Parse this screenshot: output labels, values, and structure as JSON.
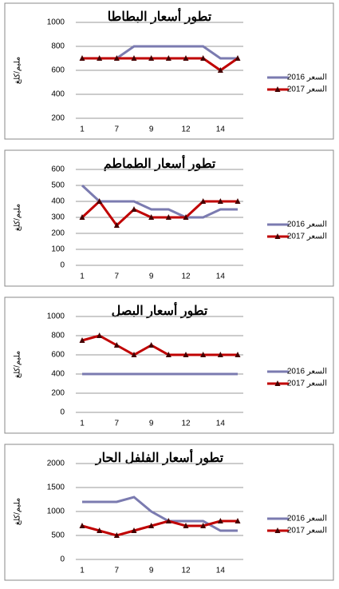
{
  "chart_data": [
    {
      "type": "line",
      "title": "تطور أسعار البطاطا",
      "y_label": "مليم/كلغ",
      "categories": [
        "1",
        null,
        "7",
        null,
        "9",
        null,
        "12",
        null,
        "14",
        null
      ],
      "series": [
        {
          "name": "السعر 2016",
          "color": "#7b7bb0",
          "values": [
            700,
            700,
            700,
            800,
            800,
            800,
            800,
            800,
            700,
            700
          ]
        },
        {
          "name": "السعر 2017",
          "color": "#c00000",
          "values": [
            700,
            700,
            700,
            700,
            700,
            700,
            700,
            700,
            600,
            700
          ]
        }
      ],
      "ylim": [
        200,
        1000
      ],
      "yticks": [
        200,
        400,
        600,
        800,
        1000
      ],
      "grid": true
    },
    {
      "type": "line",
      "title": "تطور أسعار الطماطم",
      "y_label": "مليم/كلغ",
      "categories": [
        "1",
        null,
        "7",
        null,
        "9",
        null,
        "12",
        null,
        "14",
        null
      ],
      "series": [
        {
          "name": "السعر 2016",
          "color": "#7b7bb0",
          "values": [
            500,
            400,
            400,
            400,
            350,
            350,
            300,
            300,
            350,
            350
          ]
        },
        {
          "name": "السعر 2017",
          "color": "#c00000",
          "values": [
            300,
            400,
            250,
            350,
            300,
            300,
            300,
            400,
            400,
            400
          ]
        }
      ],
      "ylim": [
        0,
        600
      ],
      "yticks": [
        0,
        100,
        200,
        300,
        400,
        500,
        600
      ],
      "grid": true
    },
    {
      "type": "line",
      "title": "تطور أسعار البصل",
      "y_label": "مليم/كلغ",
      "categories": [
        "1",
        null,
        "7",
        null,
        "9",
        null,
        "12",
        null,
        "14",
        null
      ],
      "series": [
        {
          "name": "السعر 2016",
          "color": "#7b7bb0",
          "values": [
            400,
            400,
            400,
            400,
            400,
            400,
            400,
            400,
            400,
            400
          ]
        },
        {
          "name": "السعر 2017",
          "color": "#c00000",
          "values": [
            750,
            800,
            700,
            600,
            700,
            600,
            600,
            600,
            600,
            600
          ]
        }
      ],
      "ylim": [
        0,
        1000
      ],
      "yticks": [
        0,
        200,
        400,
        600,
        800,
        1000
      ],
      "grid": true
    },
    {
      "type": "line",
      "title": "تطور أسعار الفلفل الحار",
      "y_label": "مليم/كلغ",
      "categories": [
        "1",
        null,
        "7",
        null,
        "9",
        null,
        "12",
        null,
        "14",
        null
      ],
      "series": [
        {
          "name": "السعر 2016",
          "color": "#7b7bb0",
          "values": [
            1200,
            1200,
            1200,
            1300,
            1000,
            800,
            800,
            800,
            600,
            600
          ]
        },
        {
          "name": "السعر 2017",
          "color": "#c00000",
          "values": [
            700,
            600,
            500,
            600,
            700,
            800,
            700,
            700,
            800,
            800
          ]
        }
      ],
      "ylim": [
        0,
        2000
      ],
      "yticks": [
        0,
        500,
        1000,
        1500,
        2000
      ],
      "grid": true
    }
  ]
}
